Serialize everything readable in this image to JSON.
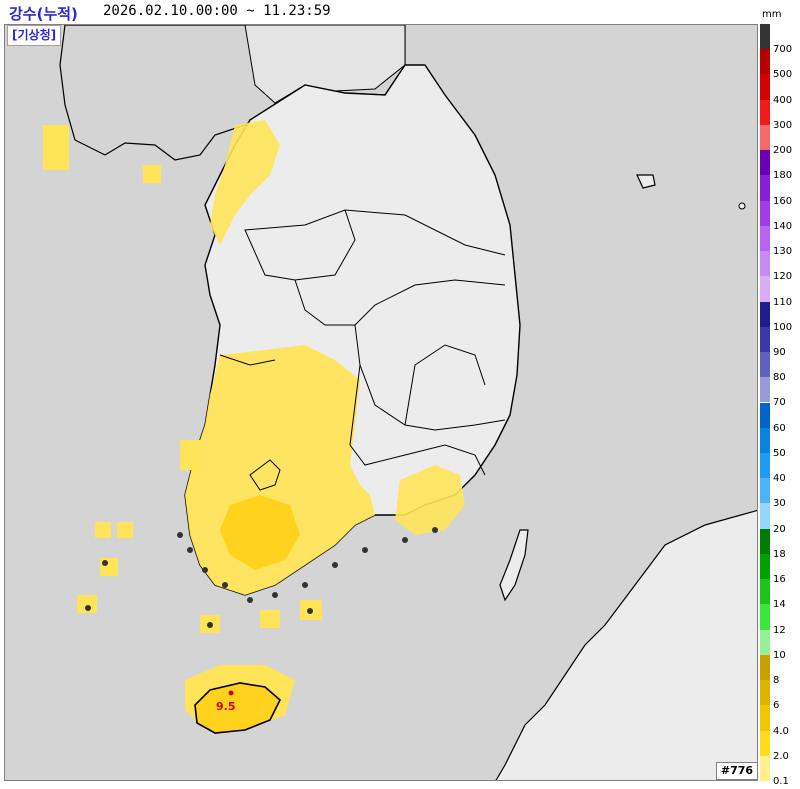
{
  "header": {
    "title": "강수(누적)",
    "period": "2026.02.10.00:00 ~ 11.23:59"
  },
  "agency": "[기상청]",
  "map_id": "#776",
  "legend": {
    "unit": "mm",
    "levels": [
      {
        "label": "700",
        "color": "#333333"
      },
      {
        "label": "500",
        "color": "#b40000"
      },
      {
        "label": "400",
        "color": "#d20000"
      },
      {
        "label": "300",
        "color": "#ee1c1c"
      },
      {
        "label": "200",
        "color": "#f56a6a"
      },
      {
        "label": "180",
        "color": "#6a00b4"
      },
      {
        "label": "160",
        "color": "#8a1ed2"
      },
      {
        "label": "140",
        "color": "#a33ce6"
      },
      {
        "label": "130",
        "color": "#b964ee"
      },
      {
        "label": "120",
        "color": "#c98af2"
      },
      {
        "label": "110",
        "color": "#d9acf6"
      },
      {
        "label": "100",
        "color": "#1e1e8a"
      },
      {
        "label": "90",
        "color": "#3a3aa6"
      },
      {
        "label": "80",
        "color": "#6060c0"
      },
      {
        "label": "70",
        "color": "#9a9ad8"
      },
      {
        "label": "60",
        "color": "#0064c8"
      },
      {
        "label": "50",
        "color": "#0a82e0"
      },
      {
        "label": "40",
        "color": "#1e9cf0"
      },
      {
        "label": "30",
        "color": "#4cb4f6"
      },
      {
        "label": "20",
        "color": "#96d6fa"
      },
      {
        "label": "18",
        "color": "#007d00"
      },
      {
        "label": "16",
        "color": "#00a000"
      },
      {
        "label": "14",
        "color": "#1ec31e"
      },
      {
        "label": "12",
        "color": "#3ce63c"
      },
      {
        "label": "10",
        "color": "#96f096"
      },
      {
        "label": "8",
        "color": "#c8a000"
      },
      {
        "label": "6",
        "color": "#dcb400"
      },
      {
        "label": "4.0",
        "color": "#f0c800"
      },
      {
        "label": "2.0",
        "color": "#ffdc1e"
      },
      {
        "label": "0.1",
        "color": "#fff08c"
      }
    ]
  },
  "max_marker": {
    "value": "9.5",
    "color": "#d2001e"
  },
  "colors": {
    "sea": "#d4d4d4",
    "land": "#ececec",
    "border": "#000000",
    "rain_light": "#ffe45a",
    "rain_medium": "#ffd21e"
  }
}
